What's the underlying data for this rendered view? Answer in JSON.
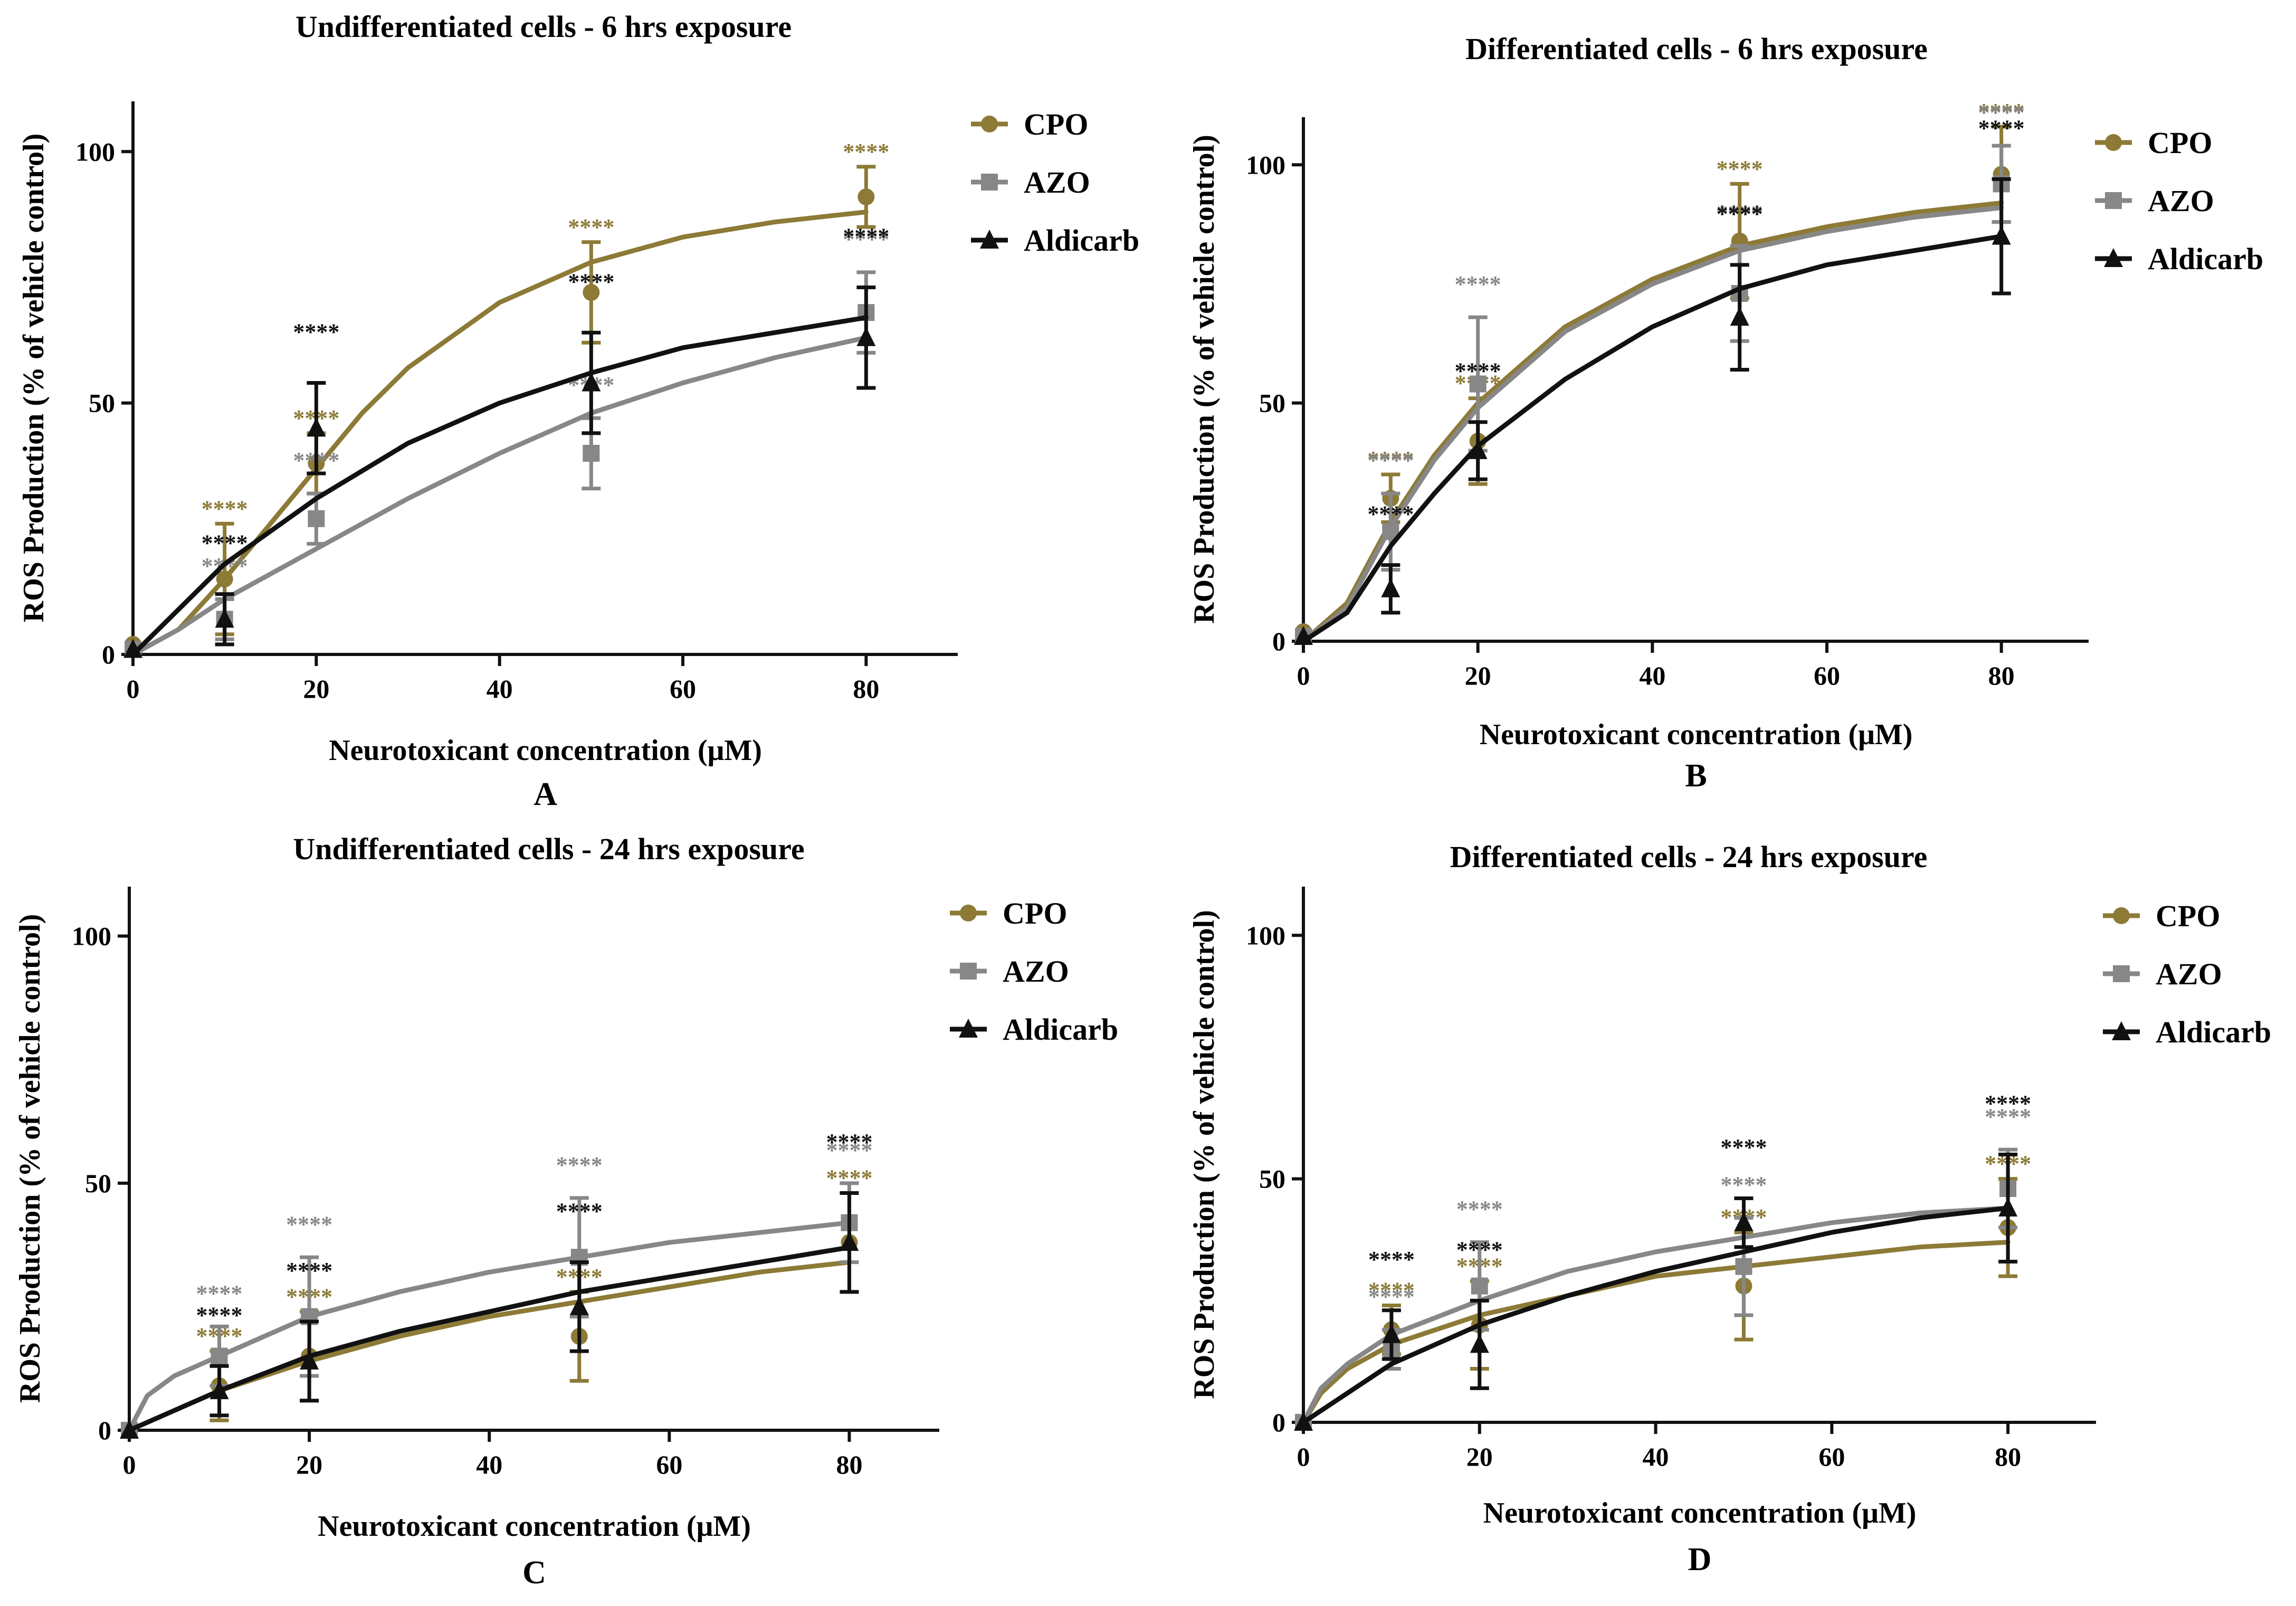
{
  "figure": {
    "colors": {
      "CPO": "#8C7A36",
      "AZO": "#878787",
      "Aldicarb": "#111111"
    },
    "markers": {
      "CPO": "circle",
      "AZO": "square",
      "Aldicarb": "triangle"
    }
  },
  "chart_data": [
    {
      "panel": "A",
      "type": "scatter",
      "title": "Undifferentiated cells - 6 hrs exposure",
      "xlabel": "Neurotoxicant concentration (μM)",
      "ylabel": "ROS Production (% of vehicle control)",
      "xlim": [
        0,
        90
      ],
      "ylim": [
        0,
        110
      ],
      "xticks": [
        0,
        20,
        40,
        60,
        80
      ],
      "yticks": [
        0,
        50,
        100
      ],
      "x": [
        0,
        10,
        20,
        50,
        80
      ],
      "legend": [
        "CPO",
        "AZO",
        "Aldicarb"
      ],
      "series": [
        {
          "name": "CPO",
          "values": [
            2,
            15,
            38,
            72,
            91
          ],
          "err": [
            0,
            11,
            6,
            10,
            6
          ],
          "fit": [
            [
              0,
              0
            ],
            [
              5,
              5
            ],
            [
              10,
              15
            ],
            [
              15,
              26
            ],
            [
              20,
              37
            ],
            [
              25,
              48
            ],
            [
              30,
              57
            ],
            [
              40,
              70
            ],
            [
              50,
              78
            ],
            [
              60,
              83
            ],
            [
              70,
              86
            ],
            [
              80,
              88
            ]
          ],
          "sig": [
            "",
            "****",
            "****",
            "****",
            "****"
          ]
        },
        {
          "name": "AZO",
          "values": [
            1,
            7,
            27,
            40,
            68
          ],
          "err": [
            0,
            4,
            5,
            7,
            8
          ],
          "fit": [
            [
              0,
              0
            ],
            [
              5,
              5
            ],
            [
              10,
              11
            ],
            [
              15,
              16
            ],
            [
              20,
              21
            ],
            [
              30,
              31
            ],
            [
              40,
              40
            ],
            [
              50,
              48
            ],
            [
              60,
              54
            ],
            [
              70,
              59
            ],
            [
              80,
              63
            ]
          ],
          "sig": [
            "",
            "****",
            "****",
            "****",
            "****"
          ]
        },
        {
          "name": "Aldicarb",
          "values": [
            1,
            7,
            45,
            54,
            63
          ],
          "err": [
            0,
            5,
            9,
            10,
            10
          ],
          "fit": [
            [
              0,
              0
            ],
            [
              10,
              18
            ],
            [
              20,
              31
            ],
            [
              30,
              42
            ],
            [
              40,
              50
            ],
            [
              50,
              56
            ],
            [
              60,
              61
            ],
            [
              70,
              64
            ],
            [
              80,
              67
            ]
          ],
          "sig": [
            "",
            "****",
            "****",
            "****",
            "****"
          ]
        }
      ]
    },
    {
      "panel": "B",
      "type": "scatter",
      "title": "Differentiated cells - 6 hrs exposure",
      "xlabel": "Neurotoxicant concentration (μM)",
      "ylabel": "ROS Production (% of vehicle control)",
      "xlim": [
        0,
        90
      ],
      "ylim": [
        0,
        110
      ],
      "xticks": [
        0,
        20,
        40,
        60,
        80
      ],
      "yticks": [
        0,
        50,
        100
      ],
      "x": [
        0,
        10,
        20,
        50,
        80
      ],
      "legend": [
        "CPO",
        "AZO",
        "Aldicarb"
      ],
      "series": [
        {
          "name": "CPO",
          "values": [
            2,
            30,
            42,
            84,
            98
          ],
          "err": [
            0,
            5,
            9,
            12,
            10
          ],
          "fit": [
            [
              0,
              0
            ],
            [
              5,
              8
            ],
            [
              10,
              25
            ],
            [
              15,
              39
            ],
            [
              20,
              50
            ],
            [
              30,
              66
            ],
            [
              40,
              76
            ],
            [
              50,
              83
            ],
            [
              60,
              87
            ],
            [
              70,
              90
            ],
            [
              80,
              92
            ]
          ],
          "sig": [
            "",
            "****",
            "****",
            "****",
            "****"
          ]
        },
        {
          "name": "AZO",
          "values": [
            1,
            23,
            54,
            73,
            96
          ],
          "err": [
            0,
            8,
            14,
            10,
            8
          ],
          "fit": [
            [
              0,
              0
            ],
            [
              5,
              7
            ],
            [
              10,
              24
            ],
            [
              15,
              38
            ],
            [
              20,
              49
            ],
            [
              30,
              65
            ],
            [
              40,
              75
            ],
            [
              50,
              82
            ],
            [
              60,
              86
            ],
            [
              70,
              89
            ],
            [
              80,
              91
            ]
          ],
          "sig": [
            "",
            "****",
            "****",
            "****",
            "****"
          ]
        },
        {
          "name": "Aldicarb",
          "values": [
            1,
            11,
            40,
            68,
            85
          ],
          "err": [
            0,
            5,
            6,
            11,
            12
          ],
          "fit": [
            [
              0,
              0
            ],
            [
              5,
              6
            ],
            [
              10,
              20
            ],
            [
              15,
              31
            ],
            [
              20,
              41
            ],
            [
              30,
              55
            ],
            [
              40,
              66
            ],
            [
              50,
              74
            ],
            [
              60,
              79
            ],
            [
              70,
              82
            ],
            [
              80,
              85
            ]
          ],
          "sig": [
            "",
            "****",
            "****",
            "****",
            "****"
          ]
        }
      ]
    },
    {
      "panel": "C",
      "type": "scatter",
      "title": "Undifferentiated cells - 24 hrs exposure",
      "xlabel": "Neurotoxicant concentration (μM)",
      "ylabel": "ROS Production (% of vehicle control)",
      "xlim": [
        0,
        90
      ],
      "ylim": [
        0,
        110
      ],
      "xticks": [
        0,
        20,
        40,
        60,
        80
      ],
      "yticks": [
        0,
        50,
        100
      ],
      "x": [
        0,
        10,
        20,
        50,
        80
      ],
      "legend": [
        "CPO",
        "AZO",
        "Aldicarb"
      ],
      "series": [
        {
          "name": "CPO",
          "values": [
            0,
            9,
            15,
            19,
            38
          ],
          "err": [
            0,
            7,
            9,
            9,
            10
          ],
          "fit": [
            [
              0,
              0
            ],
            [
              10,
              8
            ],
            [
              20,
              14
            ],
            [
              30,
              19
            ],
            [
              40,
              23
            ],
            [
              50,
              26
            ],
            [
              60,
              29
            ],
            [
              70,
              32
            ],
            [
              80,
              34
            ]
          ],
          "sig": [
            "",
            "****",
            "****",
            "****",
            "****"
          ]
        },
        {
          "name": "AZO",
          "values": [
            0,
            15,
            23,
            35,
            42
          ],
          "err": [
            0,
            6,
            12,
            12,
            8
          ],
          "fit": [
            [
              0,
              0
            ],
            [
              2,
              7
            ],
            [
              5,
              11
            ],
            [
              10,
              15
            ],
            [
              20,
              23
            ],
            [
              30,
              28
            ],
            [
              40,
              32
            ],
            [
              50,
              35
            ],
            [
              60,
              38
            ],
            [
              70,
              40
            ],
            [
              80,
              42
            ]
          ],
          "sig": [
            "",
            "****",
            "****",
            "****",
            "****"
          ]
        },
        {
          "name": "Aldicarb",
          "values": [
            0,
            8,
            14,
            25,
            38
          ],
          "err": [
            0,
            5,
            8,
            9,
            10
          ],
          "fit": [
            [
              0,
              0
            ],
            [
              10,
              8
            ],
            [
              20,
              15
            ],
            [
              30,
              20
            ],
            [
              40,
              24
            ],
            [
              50,
              28
            ],
            [
              60,
              31
            ],
            [
              70,
              34
            ],
            [
              80,
              37
            ]
          ],
          "sig": [
            "",
            "****",
            "****",
            "****",
            "****"
          ]
        }
      ]
    },
    {
      "panel": "D",
      "type": "scatter",
      "title": "Differentiated cells - 24 hrs exposure",
      "xlabel": "Neurotoxicant concentration (μM)",
      "ylabel": "ROS Production (% of vehicle control)",
      "xlim": [
        0,
        90
      ],
      "ylim": [
        0,
        110
      ],
      "xticks": [
        0,
        20,
        40,
        60,
        80
      ],
      "yticks": [
        0,
        50,
        100
      ],
      "x": [
        0,
        10,
        20,
        50,
        80
      ],
      "legend": [
        "CPO",
        "AZO",
        "Aldicarb"
      ],
      "series": [
        {
          "name": "CPO",
          "values": [
            0,
            19,
            20,
            28,
            40
          ],
          "err": [
            0,
            5,
            9,
            11,
            10
          ],
          "fit": [
            [
              0,
              0
            ],
            [
              2,
              6
            ],
            [
              5,
              11
            ],
            [
              10,
              16
            ],
            [
              20,
              22
            ],
            [
              30,
              26
            ],
            [
              40,
              30
            ],
            [
              50,
              32
            ],
            [
              60,
              34
            ],
            [
              70,
              36
            ],
            [
              80,
              37
            ]
          ],
          "sig": [
            "",
            "****",
            "****",
            "****",
            "****"
          ]
        },
        {
          "name": "AZO",
          "values": [
            0,
            15,
            28,
            32,
            48
          ],
          "err": [
            0,
            4,
            9,
            10,
            8
          ],
          "fit": [
            [
              0,
              0
            ],
            [
              2,
              7
            ],
            [
              5,
              12
            ],
            [
              10,
              18
            ],
            [
              20,
              25
            ],
            [
              30,
              31
            ],
            [
              40,
              35
            ],
            [
              50,
              38
            ],
            [
              60,
              41
            ],
            [
              70,
              43
            ],
            [
              80,
              44
            ]
          ],
          "sig": [
            "",
            "****",
            "****",
            "****",
            "****"
          ]
        },
        {
          "name": "Aldicarb",
          "values": [
            0,
            18,
            16,
            41,
            44
          ],
          "err": [
            0,
            5,
            9,
            5,
            11
          ],
          "fit": [
            [
              0,
              0
            ],
            [
              10,
              12
            ],
            [
              20,
              20
            ],
            [
              30,
              26
            ],
            [
              40,
              31
            ],
            [
              50,
              35
            ],
            [
              60,
              39
            ],
            [
              70,
              42
            ],
            [
              80,
              44
            ]
          ],
          "sig": [
            "",
            "****",
            "****",
            "****",
            "****"
          ]
        }
      ]
    }
  ]
}
